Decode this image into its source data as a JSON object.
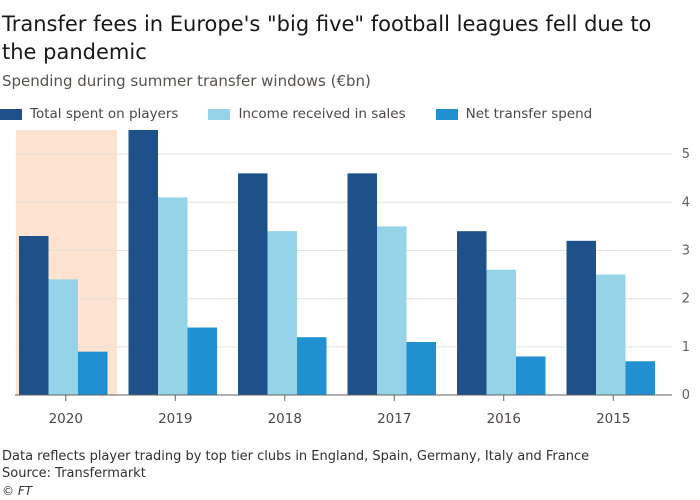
{
  "header": {
    "title": "Transfer fees in Europe's \"big five\" football leagues fell due to the pandemic",
    "subtitle": "Spending during summer transfer windows (€bn)"
  },
  "footer": {
    "note": "Data reflects player trading by top tier clubs in England, Spain, Germany, Italy and France",
    "source": "Source: Transfermarkt",
    "credit": "© FT"
  },
  "colors": {
    "total": "#1e5089",
    "income": "#95d3e8",
    "net": "#2090d0",
    "highlight": "#fde3d0",
    "grid": "#e6e0d9",
    "axis": "#66605c"
  },
  "chart_data": {
    "type": "bar",
    "title": "Transfer fees in Europe's \"big five\" football leagues fell due to the pandemic",
    "subtitle": "Spending during summer transfer windows (€bn)",
    "categories": [
      "2020",
      "2019",
      "2018",
      "2017",
      "2016",
      "2015"
    ],
    "series": [
      {
        "name": "Total spent on players",
        "values": [
          3.3,
          5.5,
          4.6,
          4.6,
          3.4,
          3.2
        ]
      },
      {
        "name": "Income received in sales",
        "values": [
          2.4,
          4.1,
          3.4,
          3.5,
          2.6,
          2.5
        ]
      },
      {
        "name": "Net transfer spend",
        "values": [
          0.9,
          1.4,
          1.2,
          1.1,
          0.8,
          0.7
        ]
      }
    ],
    "y_ticks": [
      "0",
      "1",
      "2",
      "3",
      "4",
      "5"
    ],
    "ylim": [
      0,
      5.5
    ],
    "highlighted_category": "2020",
    "y_axis_side": "right",
    "grid": true,
    "legend_position": "top-left"
  }
}
